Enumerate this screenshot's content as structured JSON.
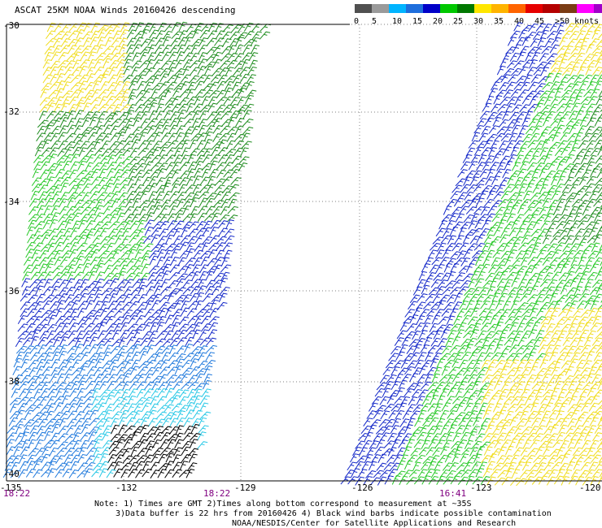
{
  "title": "ASCAT 25KM NOAA Winds 20160426 descending",
  "legend": {
    "swatches": [
      "#505050",
      "#9a9a9a",
      "#00b4ff",
      "#1e6edc",
      "#0000c8",
      "#00c800",
      "#007800",
      "#ffe600",
      "#ffb400",
      "#ff6400",
      "#e60000",
      "#b40000",
      "#7a3c14",
      "#ff00ff",
      "#a000c8",
      "#3c0078"
    ],
    "ticks": [
      "0",
      "5",
      "10",
      "15",
      "20",
      "25",
      "30",
      "35",
      "40",
      "45",
      ">50 knots"
    ],
    "unit": "knots"
  },
  "axes": {
    "lat_labels": [
      "-30",
      "-32",
      "-34",
      "-36",
      "-38",
      "-40"
    ],
    "lon_labels": [
      "-135",
      "-132",
      "-129",
      "-126",
      "-123",
      "-120"
    ]
  },
  "times": [
    "18:22",
    "18:22",
    "16:41"
  ],
  "notes": [
    "Note: 1) Times are GMT 2)Times along bottom correspond to measurement at ~35S",
    "3)Data buffer is 22 hrs from 20160426 4) Black wind barbs indicate possible contamination",
    "NOAA/NESDIS/Center for Satellite Applications and Research"
  ],
  "colors": {
    "yellow": "#f0dc1e",
    "dark_green": "#1e8c1e",
    "light_green": "#28c828",
    "dark_blue": "#1428c8",
    "blue": "#1e78dc",
    "cyan": "#28c8e6",
    "black": "#000000"
  }
}
